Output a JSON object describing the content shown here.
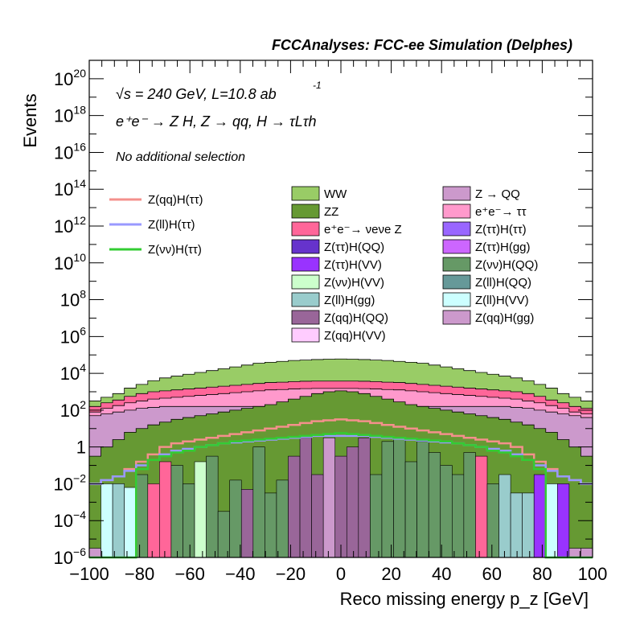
{
  "header_title": "FCCAnalyses: FCC-ee Simulation (Delphes)",
  "annotations": {
    "energy": "√s = 240 GeV, L=10.8 ab",
    "energy_exp": "-1",
    "process": "e⁺e⁻ → Z H, Z → qq, H → τLτh",
    "selection": "No additional selection"
  },
  "chart_data": {
    "type": "area",
    "title": "FCCAnalyses: FCC-ee Simulation (Delphes)",
    "xlabel": "Reco missing energy p_z [GeV]",
    "ylabel": "Events",
    "xlim": [
      -100,
      100
    ],
    "ylim": [
      1e-06,
      1e+21
    ],
    "yscale": "log",
    "x_ticks": [
      "−100",
      "−80",
      "−60",
      "−40",
      "−20",
      "0",
      "20",
      "40",
      "60",
      "80",
      "100"
    ],
    "y_ticks": [
      {
        "base": "10",
        "exp": "−6",
        "value": 1e-06
      },
      {
        "base": "10",
        "exp": "−4",
        "value": 0.0001
      },
      {
        "base": "10",
        "exp": "−2",
        "value": 0.01
      },
      {
        "base": "1",
        "exp": "",
        "value": 1
      },
      {
        "base": "10",
        "exp": "2",
        "value": 100.0
      },
      {
        "base": "10",
        "exp": "4",
        "value": 10000.0
      },
      {
        "base": "10",
        "exp": "6",
        "value": 1000000.0
      },
      {
        "base": "10",
        "exp": "8",
        "value": 100000000.0
      },
      {
        "base": "10",
        "exp": "10",
        "value": 10000000000.0
      },
      {
        "base": "10",
        "exp": "12",
        "value": 1000000000000.0
      },
      {
        "base": "10",
        "exp": "14",
        "value": 100000000000000.0
      },
      {
        "base": "10",
        "exp": "16",
        "value": 1e+16
      },
      {
        "base": "10",
        "exp": "18",
        "value": 1e+18
      },
      {
        "base": "10",
        "exp": "20",
        "value": 1e+20
      }
    ],
    "stack_totals_log10": [
      {
        "name": "WW",
        "color": "#99cc66",
        "values": [
          2.5,
          2.7,
          2.9,
          3.2,
          3.4,
          3.6,
          3.75,
          3.85,
          3.95,
          4.05,
          4.15,
          4.25,
          4.35,
          4.45,
          4.55,
          4.6,
          4.65,
          4.7,
          4.72,
          4.75,
          4.77,
          4.78,
          4.77,
          4.75,
          4.72,
          4.7,
          4.65,
          4.6,
          4.55,
          4.45,
          4.35,
          4.25,
          4.15,
          4.05,
          3.95,
          3.85,
          3.75,
          3.6,
          3.4,
          3.2,
          2.9,
          2.7,
          2.5
        ]
      },
      {
        "name": "e+e- → νeνe Z",
        "color": "#ff6699",
        "values": [
          2.2,
          2.4,
          2.55,
          2.75,
          2.9,
          3.0,
          3.05,
          3.1,
          3.15,
          3.2,
          3.25,
          3.3,
          3.35,
          3.4,
          3.45,
          3.5,
          3.52,
          3.55,
          3.57,
          3.58,
          3.58,
          3.58,
          3.58,
          3.57,
          3.55,
          3.52,
          3.5,
          3.45,
          3.4,
          3.35,
          3.3,
          3.25,
          3.2,
          3.15,
          3.1,
          3.05,
          3.0,
          2.9,
          2.75,
          2.55,
          2.4,
          2.2,
          2.1
        ]
      },
      {
        "name": "e+e- → ττ",
        "color": "#ff99cc",
        "values": [
          1.9,
          2.1,
          2.25,
          2.4,
          2.5,
          2.6,
          2.65,
          2.7,
          2.75,
          2.8,
          2.85,
          2.9,
          2.95,
          3.0,
          3.05,
          3.1,
          3.12,
          3.15,
          3.17,
          3.18,
          3.18,
          3.18,
          3.18,
          3.17,
          3.15,
          3.12,
          3.1,
          3.05,
          3.0,
          2.95,
          2.9,
          2.85,
          2.8,
          2.75,
          2.7,
          2.65,
          2.6,
          2.5,
          2.4,
          2.25,
          2.1,
          1.9,
          1.8
        ]
      },
      {
        "name": "Z → QQ",
        "color": "#cc99cc",
        "values": [
          1.7,
          1.8,
          1.9,
          2.0,
          2.1,
          2.15,
          2.2,
          2.2,
          2.2,
          2.2,
          2.2,
          2.2,
          2.2,
          2.2,
          2.2,
          2.2,
          2.2,
          2.2,
          2.2,
          2.2,
          2.2,
          2.2,
          2.2,
          2.2,
          2.2,
          2.2,
          2.2,
          2.2,
          2.2,
          2.2,
          2.2,
          2.2,
          2.2,
          2.2,
          2.2,
          2.2,
          2.15,
          2.1,
          2.0,
          1.9,
          1.8,
          1.7,
          1.6
        ]
      },
      {
        "name": "ZZ",
        "color": "#669933",
        "values": [
          -0.5,
          0.0,
          0.4,
          0.8,
          1.0,
          1.2,
          1.35,
          1.5,
          1.6,
          1.7,
          1.8,
          1.9,
          2.0,
          2.1,
          2.2,
          2.3,
          2.45,
          2.6,
          2.75,
          2.9,
          3.0,
          3.05,
          3.0,
          2.9,
          2.75,
          2.6,
          2.45,
          2.3,
          2.2,
          2.1,
          2.0,
          1.9,
          1.8,
          1.7,
          1.6,
          1.5,
          1.35,
          1.2,
          1.0,
          0.8,
          0.4,
          0.0,
          -0.5
        ]
      }
    ],
    "overlays_log10": [
      {
        "name": "Z(qq)H(ττ)",
        "color": "#f4908c",
        "values": [
          -2.0,
          -1.8,
          -1.6,
          -1.2,
          -0.8,
          -0.4,
          0.0,
          0.2,
          0.3,
          0.4,
          0.5,
          0.6,
          0.7,
          0.8,
          0.9,
          1.0,
          1.1,
          1.2,
          1.3,
          1.4,
          1.45,
          1.5,
          1.45,
          1.4,
          1.3,
          1.2,
          1.1,
          1.0,
          0.9,
          0.8,
          0.7,
          0.6,
          0.5,
          0.4,
          0.3,
          0.2,
          0.0,
          -0.4,
          -0.8,
          -1.2,
          -1.6,
          -1.8,
          -2.0
        ]
      },
      {
        "name": "Z(ll)H(ττ)",
        "color": "#9999ff",
        "values": [
          -2.0,
          -1.8,
          -1.6,
          -1.3,
          -1.0,
          -0.7,
          -0.4,
          -0.2,
          -0.1,
          0.0,
          0.1,
          0.2,
          0.25,
          0.3,
          0.35,
          0.4,
          0.45,
          0.5,
          0.55,
          0.6,
          0.6,
          0.6,
          0.6,
          0.6,
          0.55,
          0.5,
          0.45,
          0.4,
          0.35,
          0.3,
          0.25,
          0.2,
          0.1,
          0.0,
          -0.1,
          -0.2,
          -0.4,
          -0.7,
          -1.0,
          -1.3,
          -1.6,
          -1.8,
          -2.0
        ]
      },
      {
        "name": "Z(νν)H(ττ)",
        "color": "#33cc33",
        "values": [
          -6.0,
          -6.0,
          -6.0,
          -6.0,
          -1.2,
          -0.7,
          -0.5,
          -0.3,
          -0.2,
          0.0,
          0.1,
          0.2,
          0.3,
          0.35,
          0.4,
          0.45,
          0.5,
          0.55,
          0.6,
          0.65,
          0.7,
          0.75,
          0.7,
          0.65,
          0.6,
          0.55,
          0.5,
          0.45,
          0.4,
          0.35,
          0.3,
          0.2,
          0.1,
          0.0,
          -0.2,
          -0.3,
          -0.5,
          -0.7,
          -1.2,
          -6.0,
          -6.0,
          -6.0,
          -6.0
        ]
      }
    ],
    "legend_lines": [
      {
        "label": "Z(qq)H(ττ)",
        "color": "#f4908c"
      },
      {
        "label": "Z(ll)H(ττ)",
        "color": "#9999ff"
      },
      {
        "label": "Z(νν)H(ττ)",
        "color": "#33cc33"
      }
    ],
    "legend_fills": [
      {
        "label": "WW",
        "color": "#99cc66"
      },
      {
        "label": "Z → QQ",
        "color": "#cc99cc"
      },
      {
        "label": "ZZ",
        "color": "#669933"
      },
      {
        "label": "e⁺e⁻→ ττ",
        "color": "#ff99cc"
      },
      {
        "label": "e⁺e⁻→ νeνe Z",
        "color": "#ff6699"
      },
      {
        "label": "Z(ττ)H(ττ)",
        "color": "#9966ff"
      },
      {
        "label": "Z(ττ)H(QQ)",
        "color": "#6633cc"
      },
      {
        "label": "Z(ττ)H(gg)",
        "color": "#cc66ff"
      },
      {
        "label": "Z(ττ)H(VV)",
        "color": "#9933ff"
      },
      {
        "label": "Z(νν)H(QQ)",
        "color": "#669966"
      },
      {
        "label": "Z(νν)H(VV)",
        "color": "#ccffcc"
      },
      {
        "label": "Z(ll)H(QQ)",
        "color": "#669999"
      },
      {
        "label": "Z(ll)H(gg)",
        "color": "#99cccc"
      },
      {
        "label": "Z(ll)H(VV)",
        "color": "#ccffff"
      },
      {
        "label": "Z(qq)H(QQ)",
        "color": "#996699"
      },
      {
        "label": "Z(qq)H(gg)",
        "color": "#cc99cc"
      },
      {
        "label": "Z(qq)H(VV)",
        "color": "#ffccff"
      }
    ],
    "legend_placement": "top",
    "grid": false
  }
}
